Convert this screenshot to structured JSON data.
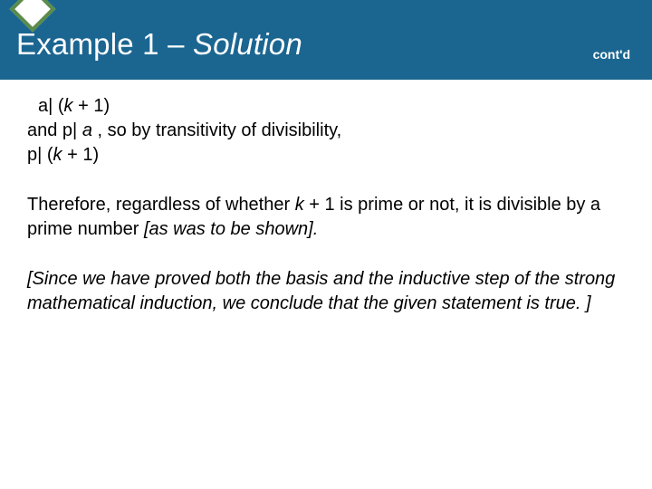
{
  "header": {
    "title_plain": "Example 1 – ",
    "title_italic": "Solution",
    "contd": "cont'd",
    "bg_color": "#1b6691",
    "diamond_border": "#5a8b4a",
    "diamond_fill": "#ffffff"
  },
  "body": {
    "b1_l1_pre": " a| (",
    "b1_l1_k": "k",
    "b1_l1_post": " + 1)",
    "b1_l2_pre": "and p| ",
    "b1_l2_a": "a",
    "b1_l2_post": " , so by transitivity of divisibility,",
    "b1_l3_pre": "p| (",
    "b1_l3_k": "k",
    "b1_l3_post": " + 1)",
    "b2_pre": "Therefore, regardless of whether ",
    "b2_k": "k",
    "b2_mid": " + 1 is prime or not, it is divisible by a prime number ",
    "b2_note": "[as was to be shown].",
    "b3": "[Since we have proved both the basis and the inductive step of the strong mathematical induction, we conclude that the given statement is true. ]"
  },
  "style": {
    "body_font_size": 20,
    "title_font_size": 33,
    "text_color": "#000000",
    "bg_color": "#ffffff"
  }
}
